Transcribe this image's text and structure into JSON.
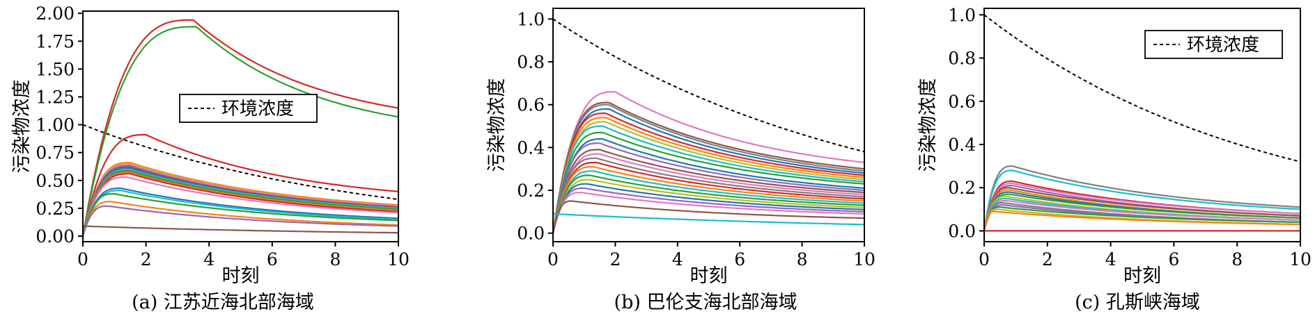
{
  "chart_data": [
    {
      "type": "line",
      "caption": "(a) 江苏近海北部海域",
      "xlabel": "时刻",
      "ylabel": "污染物浓度",
      "xlim": [
        0,
        10
      ],
      "ylim": [
        -0.05,
        2.02
      ],
      "xticks": [
        "0",
        "2",
        "4",
        "6",
        "8",
        "10"
      ],
      "yticks": [
        "0.00",
        "0.25",
        "0.50",
        "0.75",
        "1.00",
        "1.25",
        "1.50",
        "1.75",
        "2.00"
      ],
      "legend": {
        "label": "环境浓度",
        "position": "center-right"
      },
      "env": {
        "start": 1.0,
        "end": 0.33
      },
      "series": [
        {
          "name": "red-high",
          "color": "#d62728",
          "peak_t": 3.5,
          "peak": 1.94,
          "end": 1.15
        },
        {
          "name": "green-high",
          "color": "#2ca02c",
          "peak_t": 3.6,
          "peak": 1.88,
          "end": 1.07
        },
        {
          "name": "red-mid",
          "color": "#d62728",
          "peak_t": 2.0,
          "peak": 0.91,
          "end": 0.4
        },
        {
          "name": "s4",
          "color": "#ff7f0e",
          "peak_t": 1.5,
          "peak": 0.66,
          "end": 0.28
        },
        {
          "name": "s5",
          "color": "#bcbd22",
          "peak_t": 1.5,
          "peak": 0.65,
          "end": 0.27
        },
        {
          "name": "s6",
          "color": "#e377c2",
          "peak_t": 1.5,
          "peak": 0.64,
          "end": 0.27
        },
        {
          "name": "s7",
          "color": "#9467bd",
          "peak_t": 1.5,
          "peak": 0.63,
          "end": 0.26
        },
        {
          "name": "s8",
          "color": "#8c564b",
          "peak_t": 1.5,
          "peak": 0.62,
          "end": 0.26
        },
        {
          "name": "s9",
          "color": "#1f77b4",
          "peak_t": 1.5,
          "peak": 0.61,
          "end": 0.25
        },
        {
          "name": "s10",
          "color": "#17becf",
          "peak_t": 1.5,
          "peak": 0.6,
          "end": 0.25
        },
        {
          "name": "s11",
          "color": "#7f7f7f",
          "peak_t": 1.5,
          "peak": 0.59,
          "end": 0.24
        },
        {
          "name": "s12",
          "color": "#2ca02c",
          "peak_t": 1.5,
          "peak": 0.58,
          "end": 0.24
        },
        {
          "name": "s13",
          "color": "#ff7f0e",
          "peak_t": 1.5,
          "peak": 0.57,
          "end": 0.23
        },
        {
          "name": "s14",
          "color": "#d62728",
          "peak_t": 1.5,
          "peak": 0.56,
          "end": 0.22
        },
        {
          "name": "s15",
          "color": "#e377c2",
          "peak_t": 1.4,
          "peak": 0.53,
          "end": 0.21
        },
        {
          "name": "s16",
          "color": "#1f77b4",
          "peak_t": 1.2,
          "peak": 0.43,
          "end": 0.16
        },
        {
          "name": "s17",
          "color": "#17becf",
          "peak_t": 1.2,
          "peak": 0.41,
          "end": 0.15
        },
        {
          "name": "s18",
          "color": "#2ca02c",
          "peak_t": 1.0,
          "peak": 0.38,
          "end": 0.14
        },
        {
          "name": "s19",
          "color": "#ff7f0e",
          "peak_t": 0.9,
          "peak": 0.31,
          "end": 0.1
        },
        {
          "name": "s20",
          "color": "#9467bd",
          "peak_t": 0.8,
          "peak": 0.27,
          "end": 0.09
        },
        {
          "name": "s21",
          "color": "#8c564b",
          "peak_t": 0.0,
          "peak": 0.09,
          "end": 0.03
        }
      ]
    },
    {
      "type": "line",
      "caption": "(b) 巴伦支海北部海域",
      "xlabel": "时刻",
      "ylabel": "污染物浓度",
      "xlim": [
        0,
        10
      ],
      "ylim": [
        -0.04,
        1.05
      ],
      "xticks": [
        "0",
        "2",
        "4",
        "6",
        "8",
        "10"
      ],
      "yticks": [
        "0.0",
        "0.2",
        "0.4",
        "0.6",
        "0.8",
        "1.0"
      ],
      "env": {
        "start": 1.0,
        "end": 0.38
      },
      "series": [
        {
          "name": "pink-top",
          "color": "#e377c2",
          "peak_t": 2.0,
          "peak": 0.66,
          "end": 0.33
        },
        {
          "name": "b2",
          "color": "#8c564b",
          "peak_t": 1.8,
          "peak": 0.61,
          "end": 0.3
        },
        {
          "name": "b3",
          "color": "#7f7f7f",
          "peak_t": 1.8,
          "peak": 0.6,
          "end": 0.29
        },
        {
          "name": "b4",
          "color": "#1f77b4",
          "peak_t": 1.8,
          "peak": 0.58,
          "end": 0.28
        },
        {
          "name": "b5",
          "color": "#d62728",
          "peak_t": 1.7,
          "peak": 0.56,
          "end": 0.27
        },
        {
          "name": "b6",
          "color": "#ff7f0e",
          "peak_t": 1.7,
          "peak": 0.54,
          "end": 0.26
        },
        {
          "name": "b7",
          "color": "#bcbd22",
          "peak_t": 1.7,
          "peak": 0.52,
          "end": 0.25
        },
        {
          "name": "b8",
          "color": "#17becf",
          "peak_t": 1.6,
          "peak": 0.5,
          "end": 0.24
        },
        {
          "name": "b9",
          "color": "#2ca02c",
          "peak_t": 1.6,
          "peak": 0.47,
          "end": 0.23
        },
        {
          "name": "b10",
          "color": "#1f77b4",
          "peak_t": 1.6,
          "peak": 0.44,
          "end": 0.21
        },
        {
          "name": "b11",
          "color": "#9467bd",
          "peak_t": 1.5,
          "peak": 0.42,
          "end": 0.2
        },
        {
          "name": "b12",
          "color": "#8c564b",
          "peak_t": 1.5,
          "peak": 0.39,
          "end": 0.19
        },
        {
          "name": "b13",
          "color": "#e377c2",
          "peak_t": 1.5,
          "peak": 0.37,
          "end": 0.18
        },
        {
          "name": "b14",
          "color": "#7f7f7f",
          "peak_t": 1.4,
          "peak": 0.35,
          "end": 0.17
        },
        {
          "name": "b15",
          "color": "#d62728",
          "peak_t": 1.4,
          "peak": 0.33,
          "end": 0.16
        },
        {
          "name": "b16",
          "color": "#ff7f0e",
          "peak_t": 1.3,
          "peak": 0.31,
          "end": 0.15
        },
        {
          "name": "b17",
          "color": "#17becf",
          "peak_t": 1.3,
          "peak": 0.29,
          "end": 0.14
        },
        {
          "name": "b18",
          "color": "#2ca02c",
          "peak_t": 1.2,
          "peak": 0.27,
          "end": 0.13
        },
        {
          "name": "b19",
          "color": "#bcbd22",
          "peak_t": 1.2,
          "peak": 0.25,
          "end": 0.12
        },
        {
          "name": "b20",
          "color": "#1f77b4",
          "peak_t": 1.1,
          "peak": 0.23,
          "end": 0.11
        },
        {
          "name": "b21",
          "color": "#9467bd",
          "peak_t": 1.0,
          "peak": 0.21,
          "end": 0.1
        },
        {
          "name": "b22",
          "color": "#e377c2",
          "peak_t": 0.9,
          "peak": 0.19,
          "end": 0.09
        },
        {
          "name": "b23",
          "color": "#8c564b",
          "peak_t": 0.6,
          "peak": 0.15,
          "end": 0.07
        },
        {
          "name": "b24",
          "color": "#17becf",
          "peak_t": 0.0,
          "peak": 0.09,
          "end": 0.04
        }
      ]
    },
    {
      "type": "line",
      "caption": "(c) 孔斯峡海域",
      "xlabel": "时刻",
      "ylabel": "污染物浓度",
      "xlim": [
        0,
        10
      ],
      "ylim": [
        -0.05,
        1.03
      ],
      "xticks": [
        "0",
        "2",
        "4",
        "6",
        "8",
        "10"
      ],
      "yticks": [
        "0.0",
        "0.2",
        "0.4",
        "0.6",
        "0.8",
        "1.0"
      ],
      "legend": {
        "label": "环境浓度",
        "position": "top-right"
      },
      "env": {
        "start": 1.0,
        "end": 0.32
      },
      "series": [
        {
          "name": "c-grey",
          "color": "#7f7f7f",
          "peak_t": 0.9,
          "peak": 0.3,
          "end": 0.11
        },
        {
          "name": "c-cyan",
          "color": "#17becf",
          "peak_t": 0.9,
          "peak": 0.28,
          "end": 0.1
        },
        {
          "name": "c3",
          "color": "#d62728",
          "peak_t": 0.9,
          "peak": 0.23,
          "end": 0.08
        },
        {
          "name": "c4",
          "color": "#e377c2",
          "peak_t": 0.9,
          "peak": 0.22,
          "end": 0.08
        },
        {
          "name": "c5",
          "color": "#9467bd",
          "peak_t": 0.9,
          "peak": 0.21,
          "end": 0.07
        },
        {
          "name": "c6",
          "color": "#8c564b",
          "peak_t": 0.8,
          "peak": 0.2,
          "end": 0.07
        },
        {
          "name": "c7",
          "color": "#ff7f0e",
          "peak_t": 0.8,
          "peak": 0.19,
          "end": 0.06
        },
        {
          "name": "c8",
          "color": "#1f77b4",
          "peak_t": 0.8,
          "peak": 0.18,
          "end": 0.06
        },
        {
          "name": "c9",
          "color": "#2ca02c",
          "peak_t": 0.8,
          "peak": 0.17,
          "end": 0.06
        },
        {
          "name": "c10",
          "color": "#bcbd22",
          "peak_t": 0.7,
          "peak": 0.16,
          "end": 0.05
        },
        {
          "name": "c11",
          "color": "#17becf",
          "peak_t": 0.7,
          "peak": 0.15,
          "end": 0.05
        },
        {
          "name": "c12",
          "color": "#e377c2",
          "peak_t": 0.7,
          "peak": 0.14,
          "end": 0.05
        },
        {
          "name": "c13",
          "color": "#7f7f7f",
          "peak_t": 0.6,
          "peak": 0.13,
          "end": 0.04
        },
        {
          "name": "c14",
          "color": "#9467bd",
          "peak_t": 0.6,
          "peak": 0.12,
          "end": 0.04
        },
        {
          "name": "c15",
          "color": "#2ca02c",
          "peak_t": 0.5,
          "peak": 0.11,
          "end": 0.04
        },
        {
          "name": "c16",
          "color": "#bcbd22",
          "peak_t": 0.4,
          "peak": 0.1,
          "end": 0.03
        },
        {
          "name": "c17",
          "color": "#ff7f0e",
          "peak_t": 0.3,
          "peak": 0.09,
          "end": 0.03
        },
        {
          "name": "c-zero",
          "color": "#d62728",
          "peak_t": 0.0,
          "peak": 0.0,
          "end": 0.0
        }
      ]
    }
  ]
}
